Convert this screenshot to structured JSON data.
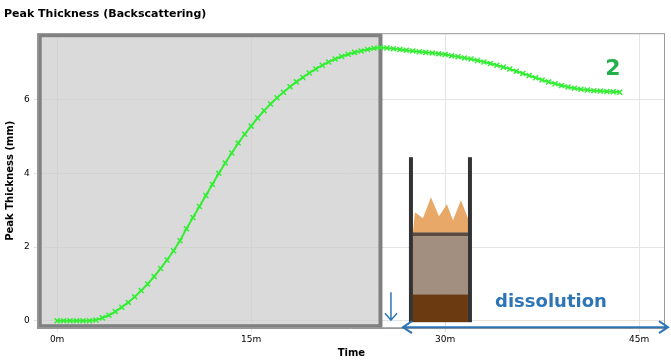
{
  "chart_data": {
    "type": "line",
    "title": "Peak Thickness (Backscattering)",
    "x_label": "Time",
    "y_label": "Peak Thickness (mm)",
    "x": [
      0,
      0.5,
      1,
      1.5,
      2,
      2.5,
      3,
      3.5,
      4,
      4.5,
      5,
      5.5,
      6,
      6.5,
      7,
      7.5,
      8,
      8.5,
      9,
      9.5,
      10,
      10.5,
      11,
      11.5,
      12,
      12.5,
      13,
      13.5,
      14,
      14.5,
      15,
      15.5,
      16,
      16.5,
      17,
      17.5,
      18,
      18.5,
      19,
      19.5,
      20,
      20.5,
      21,
      21.5,
      22,
      22.5,
      23,
      23.5,
      24,
      24.5,
      25,
      25.5,
      26,
      26.5,
      27,
      27.5,
      28,
      28.5,
      29,
      29.5,
      30,
      30.5,
      31,
      31.5,
      32,
      32.5,
      33,
      33.5,
      34,
      34.5,
      35,
      35.5,
      36,
      36.5,
      37,
      37.5,
      38,
      38.5,
      39,
      39.5,
      40,
      40.5,
      41,
      41.5,
      42,
      42.5,
      43,
      43.5
    ],
    "values": [
      0,
      0,
      0,
      0,
      0,
      0,
      0.02,
      0.08,
      0.15,
      0.25,
      0.37,
      0.5,
      0.65,
      0.82,
      1.0,
      1.2,
      1.42,
      1.65,
      1.9,
      2.17,
      2.5,
      2.8,
      3.1,
      3.4,
      3.7,
      4.0,
      4.28,
      4.55,
      4.82,
      5.06,
      5.28,
      5.5,
      5.7,
      5.88,
      6.05,
      6.2,
      6.35,
      6.48,
      6.6,
      6.72,
      6.83,
      6.93,
      7.02,
      7.1,
      7.17,
      7.23,
      7.28,
      7.32,
      7.36,
      7.39,
      7.41,
      7.4,
      7.38,
      7.36,
      7.34,
      7.32,
      7.3,
      7.28,
      7.26,
      7.24,
      7.22,
      7.19,
      7.16,
      7.13,
      7.1,
      7.06,
      7.02,
      6.98,
      6.93,
      6.88,
      6.83,
      6.77,
      6.71,
      6.65,
      6.59,
      6.53,
      6.48,
      6.43,
      6.38,
      6.34,
      6.31,
      6.28,
      6.26,
      6.24,
      6.23,
      6.22,
      6.21,
      6.2
    ],
    "color": "#33ee33",
    "marker": "x",
    "line_style": "solid",
    "xlim": [
      -1.5,
      47
    ],
    "xticks": [
      {
        "value": 0,
        "label": "0m"
      },
      {
        "value": 15,
        "label": "15m"
      },
      {
        "value": 30,
        "label": "30m"
      },
      {
        "value": 45,
        "label": "45m"
      }
    ],
    "ylim": [
      -0.2,
      7.8
    ],
    "yticks": [
      0,
      2,
      4,
      6
    ],
    "grid": true,
    "annotations": [
      {
        "text": "2",
        "color": "#22b14c"
      },
      {
        "text": "dissolution",
        "color": "#2e75b6"
      }
    ]
  }
}
